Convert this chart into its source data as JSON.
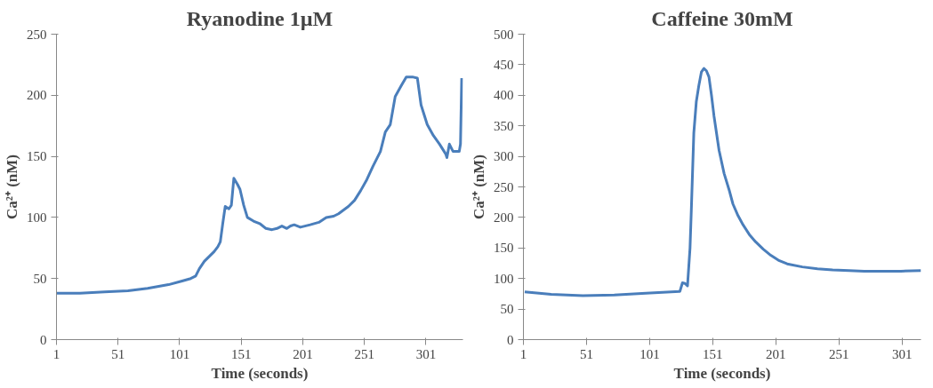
{
  "chart_data": [
    {
      "type": "line",
      "title": "Ryanodine 1µM",
      "xlabel": "Time (seconds)",
      "ylabel": "Ca²⁺ (nM)",
      "xlim": [
        1,
        331
      ],
      "ylim": [
        0,
        250
      ],
      "xticks": [
        1,
        51,
        101,
        151,
        201,
        251,
        301
      ],
      "yticks": [
        0,
        50,
        100,
        150,
        200,
        250
      ],
      "grid": false,
      "series": [
        {
          "color": "#4a7ebb",
          "x": [
            1,
            20,
            40,
            59,
            75,
            92,
            103,
            110,
            114,
            117,
            121,
            125,
            129,
            132,
            134,
            136,
            138,
            141,
            143,
            145,
            148,
            150,
            153,
            156,
            161,
            166,
            171,
            176,
            180,
            184,
            188,
            191,
            194,
            199,
            207,
            214,
            220,
            226,
            230,
            238,
            243,
            248,
            253,
            258,
            264,
            268,
            272,
            276,
            281,
            285,
            290,
            294,
            297,
            302,
            307,
            312,
            317,
            318,
            320,
            323,
            328,
            329,
            330
          ],
          "values": [
            38,
            38,
            39,
            40,
            42,
            45,
            48,
            50,
            52,
            58,
            64,
            68,
            72,
            76,
            80,
            95,
            109,
            107,
            110,
            132,
            127,
            123,
            110,
            100,
            97,
            95,
            91,
            90,
            91,
            93,
            91,
            93,
            94,
            92,
            94,
            96,
            100,
            101,
            103,
            109,
            114,
            122,
            131,
            142,
            154,
            170,
            176,
            199,
            208,
            215,
            215,
            214,
            192,
            176,
            167,
            160,
            152,
            149,
            160,
            154,
            154,
            160,
            214
          ]
        }
      ]
    },
    {
      "type": "line",
      "title": "Caffeine 30mM",
      "xlabel": "Time (seconds)",
      "ylabel": "Ca²⁺ (nM)",
      "xlim": [
        1,
        316
      ],
      "ylim": [
        0,
        500
      ],
      "xticks": [
        1,
        51,
        101,
        151,
        201,
        251,
        301
      ],
      "yticks": [
        0,
        50,
        100,
        150,
        200,
        250,
        300,
        350,
        400,
        450,
        500
      ],
      "grid": false,
      "series": [
        {
          "color": "#4a7ebb",
          "x": [
            2,
            23,
            48,
            73,
            98,
            125,
            127,
            129,
            131,
            133,
            134,
            136,
            138,
            140,
            142,
            144,
            146,
            148,
            150,
            152,
            156,
            160,
            164,
            167,
            171,
            175,
            180,
            185,
            191,
            197,
            203,
            210,
            222,
            234,
            246,
            259,
            271,
            284,
            300,
            316
          ],
          "values": [
            78,
            74,
            72,
            73,
            76,
            79,
            93,
            92,
            88,
            150,
            210,
            338,
            390,
            416,
            438,
            444,
            440,
            430,
            400,
            366,
            310,
            272,
            245,
            222,
            203,
            188,
            172,
            160,
            148,
            138,
            130,
            124,
            119,
            116,
            114,
            113,
            112,
            112,
            112,
            113
          ]
        }
      ]
    }
  ]
}
